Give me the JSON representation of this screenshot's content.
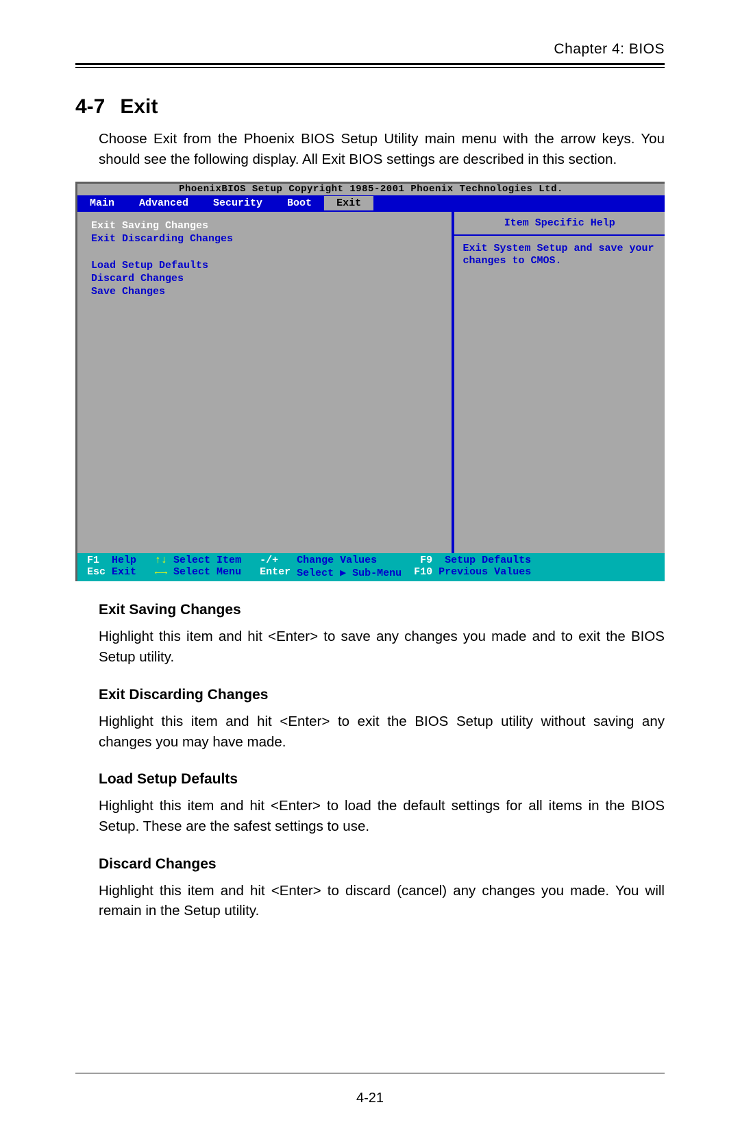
{
  "chapter_header": "Chapter 4: BIOS",
  "section": {
    "number": "4-7",
    "title": "Exit"
  },
  "intro": "Choose Exit from the Phoenix BIOS Setup Utility main menu with the arrow keys. You should see the following display.  All Exit BIOS settings are described in this section.",
  "bios": {
    "title_bar": "PhoenixBIOS Setup   Copyright 1985-2001 Phoenix Technologies Ltd.",
    "tabs": [
      "Main",
      "Advanced",
      "Security",
      "Boot",
      "Exit"
    ],
    "active_tab_index": 4,
    "menu_items": [
      {
        "label": "Exit Saving Changes",
        "selected": true
      },
      {
        "label": "Exit Discarding Changes",
        "selected": false
      },
      {
        "label": "",
        "spacer": true
      },
      {
        "label": "Load Setup Defaults",
        "selected": false
      },
      {
        "label": "Discard Changes",
        "selected": false
      },
      {
        "label": "Save Changes",
        "selected": false
      }
    ],
    "help_title": "Item Specific Help",
    "help_text": "Exit System Setup and save your changes to CMOS.",
    "footer": {
      "r1": [
        {
          "k": "F1",
          "t": "  Help   "
        },
        {
          "k": "↑↓",
          "t": " Select Item   "
        },
        {
          "k": "-/+",
          "t": "   Change Values       "
        },
        {
          "k": "F9",
          "t": "  Setup Defaults"
        }
      ],
      "r2": [
        {
          "k": "Esc",
          "t": " Exit   "
        },
        {
          "k": "←→",
          "t": " Select Menu   "
        },
        {
          "k": "Enter",
          "t": " Select ▶ Sub-Menu  "
        },
        {
          "k": "F10",
          "t": " Previous Values"
        }
      ]
    },
    "colors": {
      "panel_bg": "#a8a8a8",
      "menubar_bg": "#0000cc",
      "footer_bg": "#00b0b0",
      "text_blue": "#0000cc",
      "text_white": "#ffffff",
      "text_yellow": "#ffff00"
    }
  },
  "descriptions": [
    {
      "heading": "Exit Saving Changes",
      "body": "Highlight this item and hit <Enter> to save any changes you made and to exit the BIOS Setup utility."
    },
    {
      "heading": "Exit Discarding Changes",
      "body": "Highlight this item and hit <Enter> to exit the BIOS Setup utility without saving any changes you may have made."
    },
    {
      "heading": "Load Setup Defaults",
      "body": "Highlight this item and hit <Enter> to load the default settings for all items in the BIOS Setup.  These are the safest settings to use."
    },
    {
      "heading": "Discard Changes",
      "body": "Highlight this item and hit <Enter> to discard (cancel) any changes you made.  You will remain in the Setup utility."
    }
  ],
  "page_number": "4-21"
}
